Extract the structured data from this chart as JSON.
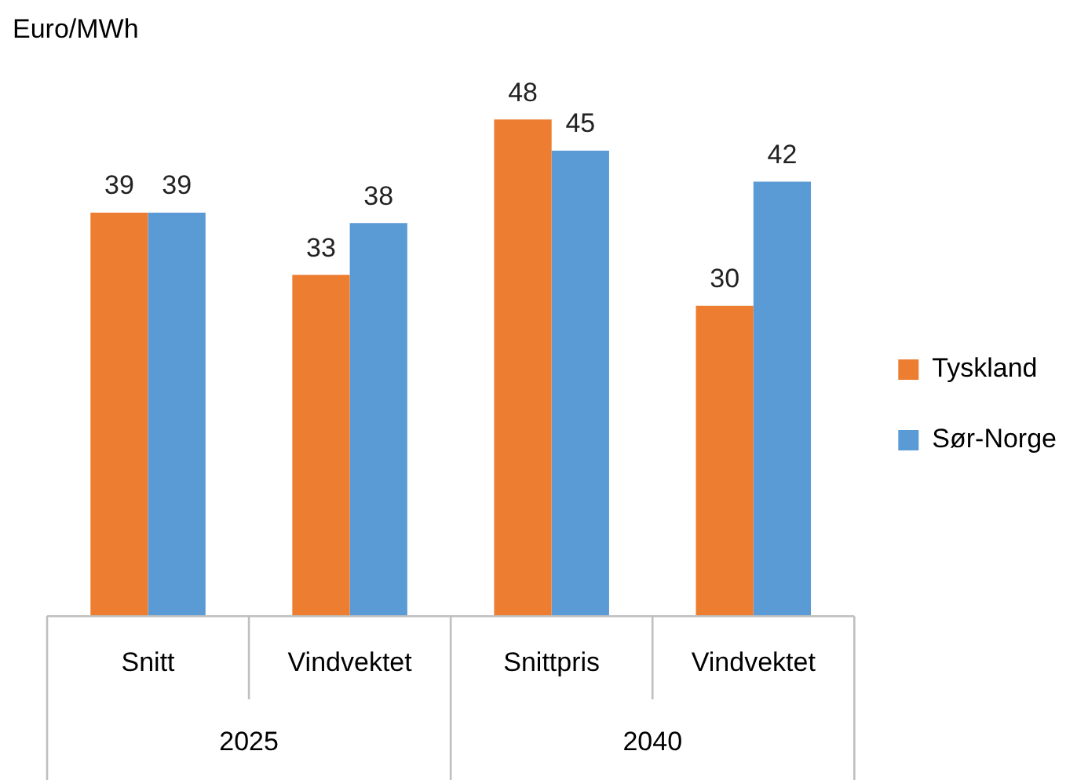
{
  "chart_data": {
    "type": "bar",
    "ylabel": "Euro/MWh",
    "categories": [
      "Snitt",
      "Vindvektet",
      "Snittpris",
      "Vindvektet"
    ],
    "series": [
      {
        "name": "Tyskland",
        "color": "#ed7d31",
        "values": [
          39,
          33,
          48,
          30
        ]
      },
      {
        "name": "Sør-Norge",
        "color": "#5b9bd5",
        "values": [
          39,
          38,
          45,
          42
        ]
      }
    ],
    "tick_labels": "x",
    "data_labels": true,
    "grid": false,
    "legend": "right",
    "annotations": [
      "2025",
      "2040"
    ]
  }
}
